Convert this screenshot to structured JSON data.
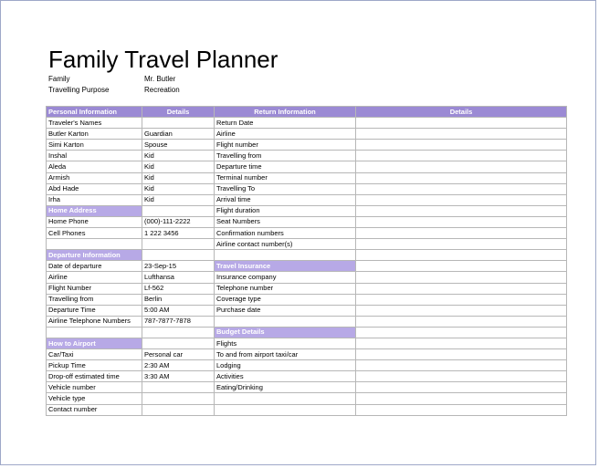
{
  "title": "Family Travel Planner",
  "meta": {
    "family_label": "Family",
    "family_value": "Mr. Butler",
    "purpose_label": "Travelling Purpose",
    "purpose_value": "Recreation"
  },
  "headers": {
    "personal": "Personal Information",
    "details_left": "Details",
    "return": "Return Information",
    "details_right": "Details"
  },
  "rows": [
    [
      "Traveler's Names",
      "",
      "Return Date",
      ""
    ],
    [
      "Butler Karton",
      "Guardian",
      "Airline",
      ""
    ],
    [
      "Simi Karton",
      "Spouse",
      "Flight number",
      ""
    ],
    [
      "Inshal",
      "Kid",
      "Travelling from",
      ""
    ],
    [
      "Aleda",
      "Kid",
      "Departure time",
      ""
    ],
    [
      "Armish",
      "Kid",
      "Terminal number",
      ""
    ],
    [
      "Abd Hade",
      "Kid",
      "Travelling To",
      ""
    ],
    [
      "Irha",
      "Kid",
      "Arrival time",
      ""
    ],
    [
      "Home Address",
      "",
      "Flight duration",
      ""
    ],
    [
      "Home Phone",
      "(000)-111-2222",
      "Seat Numbers",
      ""
    ],
    [
      "Cell Phones",
      "1 222 3456",
      "Confirmation numbers",
      ""
    ],
    [
      "",
      "",
      "Airline contact number(s)",
      ""
    ],
    [
      "Departure Information",
      "",
      "",
      ""
    ],
    [
      "Date of departure",
      "23-Sep-15",
      "Travel Insurance",
      ""
    ],
    [
      "Airline",
      "Lufthansa",
      "Insurance company",
      ""
    ],
    [
      "Flight Number",
      "Lf-562",
      "Telephone number",
      ""
    ],
    [
      "Travelling from",
      "Berlin",
      "Coverage type",
      ""
    ],
    [
      "Departure Time",
      "5:00 AM",
      "Purchase date",
      ""
    ],
    [
      "Airline Telephone Numbers",
      "787-7877-7878",
      "",
      ""
    ],
    [
      "",
      "",
      "Budget Details",
      ""
    ],
    [
      "How to Airport",
      "",
      "Flights",
      ""
    ],
    [
      "Car/Taxi",
      "Personal car",
      "To and from airport taxi/car",
      ""
    ],
    [
      "Pickup Time",
      "2:30 AM",
      "Lodging",
      ""
    ],
    [
      "Drop-off estimated time",
      "3:30 AM",
      "Activities",
      ""
    ],
    [
      "Vehicle number",
      "",
      "Eating/Drinking",
      ""
    ],
    [
      "Vehicle type",
      "",
      "",
      ""
    ],
    [
      "Contact number",
      "",
      "",
      ""
    ]
  ],
  "section_cells": [
    [
      8,
      0
    ],
    [
      12,
      0
    ],
    [
      13,
      2
    ],
    [
      19,
      2
    ],
    [
      20,
      0
    ]
  ]
}
